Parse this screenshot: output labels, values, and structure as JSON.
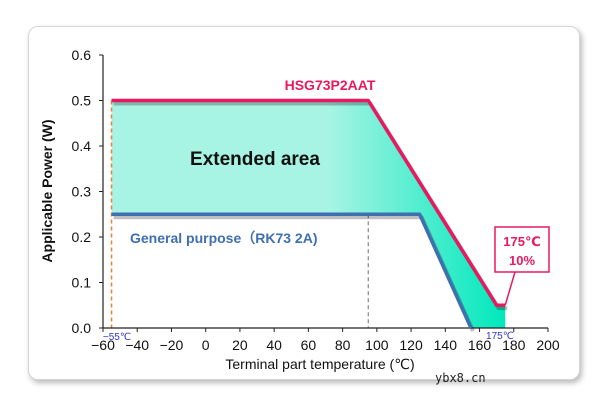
{
  "chart_data": {
    "type": "area",
    "title": "",
    "xlabel": "Terminal part temperature (℃)",
    "ylabel": "Applicable Power (W)",
    "xlim": [
      -60,
      200
    ],
    "ylim": [
      0,
      0.6
    ],
    "xticks": [
      -60,
      -40,
      -20,
      0,
      20,
      40,
      60,
      80,
      100,
      120,
      140,
      160,
      180,
      200
    ],
    "xtick_labels": [
      "−60",
      "−40",
      "−20",
      "0",
      "20",
      "40",
      "60",
      "80",
      "100",
      "120",
      "140",
      "160",
      "180",
      "200"
    ],
    "yticks": [
      0,
      0.1,
      0.2,
      0.3,
      0.4,
      0.5,
      0.6
    ],
    "ytick_labels": [
      "0.0",
      "0.1",
      "0.2",
      "0.3",
      "0.4",
      "0.5",
      "0.6"
    ],
    "grid": false,
    "series": [
      {
        "name": "HSG73P2AAT",
        "color": "#e8195f",
        "x": [
          -55,
          95,
          170,
          175
        ],
        "y": [
          0.5,
          0.5,
          0.05,
          0.05
        ]
      },
      {
        "name": "General purpose（RK73 2A)",
        "color": "#3e6fb0",
        "x": [
          -55,
          125,
          155
        ],
        "y": [
          0.25,
          0.25,
          0
        ]
      }
    ],
    "area_label": "Extended area",
    "area_color": "#a8f4e4",
    "area_color_right": "#00e8bc",
    "reference_lines": [
      {
        "x": -55,
        "color": "#f08030",
        "label": "−55℃"
      },
      {
        "x": 95,
        "color": "#909090",
        "label": ""
      },
      {
        "x": 175,
        "color": "#e8195f",
        "label": "175℃"
      }
    ],
    "annotation": {
      "line1": "175℃",
      "line2": "10%",
      "color": "#e8195f"
    }
  },
  "watermark": "ybx8.cn"
}
